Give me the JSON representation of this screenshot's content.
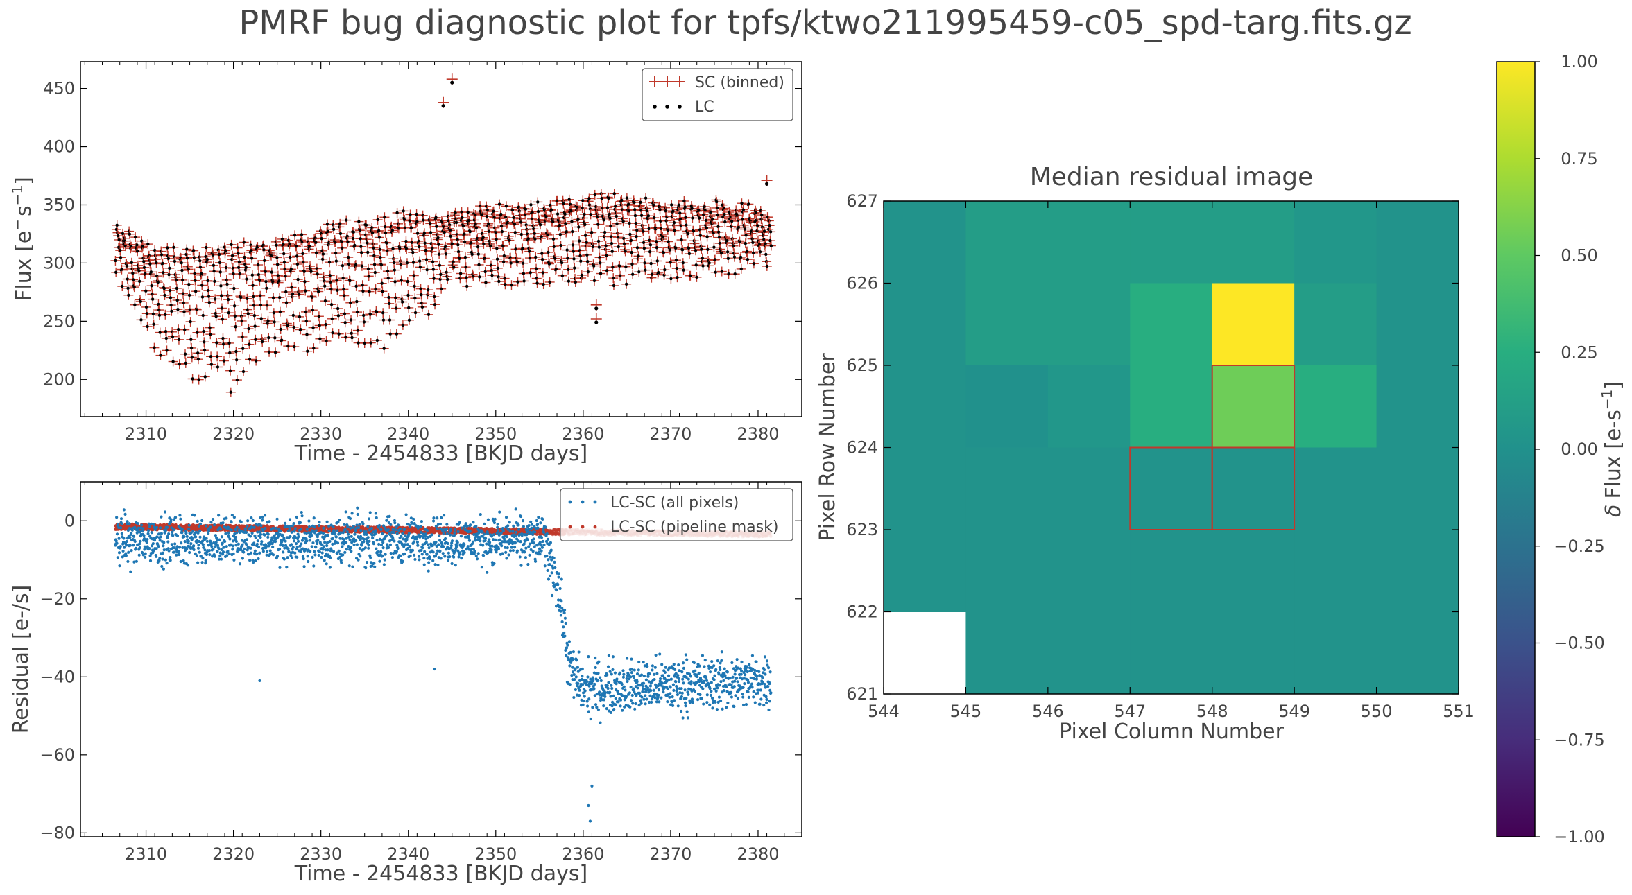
{
  "figure": {
    "title": "PMRF bug diagnostic plot for tpfs/ktwo211995459-c05_spd-targ.fits.gz"
  },
  "chart_data": [
    {
      "id": "flux_panel",
      "type": "scatter",
      "xlabel": "Time - 2454833 [BKJD days]",
      "ylabel_main": "Flux [e",
      "ylabel_sup1": "−",
      "ylabel_mid": "s",
      "ylabel_sup2": "−1",
      "ylabel_end": "]",
      "xlim": [
        2302.5,
        2385
      ],
      "ylim": [
        168,
        473
      ],
      "xticks": [
        2310,
        2320,
        2330,
        2340,
        2350,
        2360,
        2370,
        2380
      ],
      "yticks": [
        200,
        250,
        300,
        350,
        400,
        450
      ],
      "legend_position": "top-right",
      "series": [
        {
          "name": "SC (binned)",
          "color": "#c0392b",
          "marker": "plus-with-errorbar"
        },
        {
          "name": "LC",
          "color": "#000000",
          "marker": "dot"
        }
      ],
      "time_range": [
        2306.5,
        2381.5
      ],
      "envelope": [
        {
          "t": 2306.5,
          "lo": 295,
          "hi": 328
        },
        {
          "t": 2309,
          "lo": 255,
          "hi": 318
        },
        {
          "t": 2312,
          "lo": 220,
          "hi": 308
        },
        {
          "t": 2315,
          "lo": 195,
          "hi": 312
        },
        {
          "t": 2318,
          "lo": 200,
          "hi": 312
        },
        {
          "t": 2320,
          "lo": 190,
          "hi": 312
        },
        {
          "t": 2323,
          "lo": 215,
          "hi": 315
        },
        {
          "t": 2327,
          "lo": 225,
          "hi": 318
        },
        {
          "t": 2330,
          "lo": 232,
          "hi": 330
        },
        {
          "t": 2333,
          "lo": 228,
          "hi": 332
        },
        {
          "t": 2336,
          "lo": 225,
          "hi": 335
        },
        {
          "t": 2339,
          "lo": 240,
          "hi": 340
        },
        {
          "t": 2343,
          "lo": 262,
          "hi": 335
        },
        {
          "t": 2345,
          "lo": 285,
          "hi": 340
        },
        {
          "t": 2350,
          "lo": 282,
          "hi": 346
        },
        {
          "t": 2355,
          "lo": 285,
          "hi": 348
        },
        {
          "t": 2360,
          "lo": 282,
          "hi": 352
        },
        {
          "t": 2365,
          "lo": 285,
          "hi": 355
        },
        {
          "t": 2370,
          "lo": 285,
          "hi": 348
        },
        {
          "t": 2375,
          "lo": 290,
          "hi": 348
        },
        {
          "t": 2379,
          "lo": 298,
          "hi": 346
        },
        {
          "t": 2381.5,
          "lo": 305,
          "hi": 335
        }
      ],
      "outliers": [
        {
          "x": 2344.0,
          "y": 438
        },
        {
          "x": 2345.0,
          "y": 458
        },
        {
          "x": 2361.5,
          "y": 264
        },
        {
          "x": 2361.5,
          "y": 252
        },
        {
          "x": 2381.0,
          "y": 371
        }
      ]
    },
    {
      "id": "residual_panel",
      "type": "scatter",
      "xlabel": "Time - 2454833 [BKJD days]",
      "ylabel": "Residual [e-/s]",
      "xlim": [
        2302.5,
        2385
      ],
      "ylim": [
        -81,
        10
      ],
      "xticks": [
        2310,
        2320,
        2330,
        2340,
        2350,
        2360,
        2370,
        2380
      ],
      "yticks": [
        -80,
        -60,
        -40,
        -20,
        0
      ],
      "legend_position": "top-right",
      "series": [
        {
          "name": "LC-SC (all pixels)",
          "color": "#1f77b4"
        },
        {
          "name": "LC-SC (pipeline mask)",
          "color": "#c0392b"
        }
      ],
      "all_pixels_levels": [
        {
          "t": 2306.5,
          "level": -5
        },
        {
          "t": 2355.5,
          "level": -5
        },
        {
          "t": 2357,
          "level": -15
        },
        {
          "t": 2358.5,
          "level": -38
        },
        {
          "t": 2360,
          "level": -43
        },
        {
          "t": 2381.5,
          "level": -41
        }
      ],
      "pipeline_mask_levels": [
        {
          "t": 2306.5,
          "level": -1.5
        },
        {
          "t": 2381.5,
          "level": -3.5
        }
      ],
      "outliers": [
        {
          "x": 2323.0,
          "y": -41
        },
        {
          "x": 2343.0,
          "y": -38
        },
        {
          "x": 2360.8,
          "y": -77
        },
        {
          "x": 2360.6,
          "y": -73
        },
        {
          "x": 2361.0,
          "y": -68
        }
      ]
    },
    {
      "id": "residual_image",
      "type": "heatmap",
      "title": "Median residual image",
      "xlabel": "Pixel Column Number",
      "ylabel": "Pixel Row Number",
      "x_edges": [
        544,
        545,
        546,
        547,
        548,
        549,
        550,
        551
      ],
      "y_edges": [
        621,
        622,
        623,
        624,
        625,
        626,
        627
      ],
      "xticks": [
        544,
        545,
        546,
        547,
        548,
        549,
        550,
        551
      ],
      "yticks": [
        621,
        622,
        623,
        624,
        625,
        626,
        627
      ],
      "clim": [
        -1,
        1
      ],
      "colormap": "viridis",
      "values_by_row": [
        [
          0.02,
          0.1,
          0.1,
          0.1,
          0.1,
          0.05,
          0.02
        ],
        [
          0.02,
          0.1,
          0.1,
          0.25,
          1.0,
          0.1,
          0.02
        ],
        [
          0.02,
          0.0,
          0.05,
          0.25,
          0.55,
          0.25,
          0.02
        ],
        [
          0.02,
          0.02,
          0.02,
          0.02,
          0.02,
          0.02,
          0.02
        ],
        [
          0.02,
          0.02,
          0.02,
          0.02,
          0.02,
          0.02,
          0.02
        ],
        [
          null,
          0.02,
          0.02,
          0.02,
          0.02,
          0.02,
          0.02
        ]
      ],
      "mask_outline": [
        [
          623,
          547
        ],
        [
          623,
          548
        ],
        [
          624,
          548
        ]
      ],
      "mask_color": "#c0392b",
      "colorbar": {
        "label_delta": "δ",
        "label_main": "Flux [e-s",
        "label_sup": "−1",
        "label_end": "]",
        "ticks": [
          -1.0,
          -0.75,
          -0.5,
          -0.25,
          0.0,
          0.25,
          0.5,
          0.75,
          1.0
        ],
        "tick_labels": [
          "−1.00",
          "−0.75",
          "−0.50",
          "−0.25",
          "0.00",
          "0.25",
          "0.50",
          "0.75",
          "1.00"
        ]
      }
    }
  ]
}
